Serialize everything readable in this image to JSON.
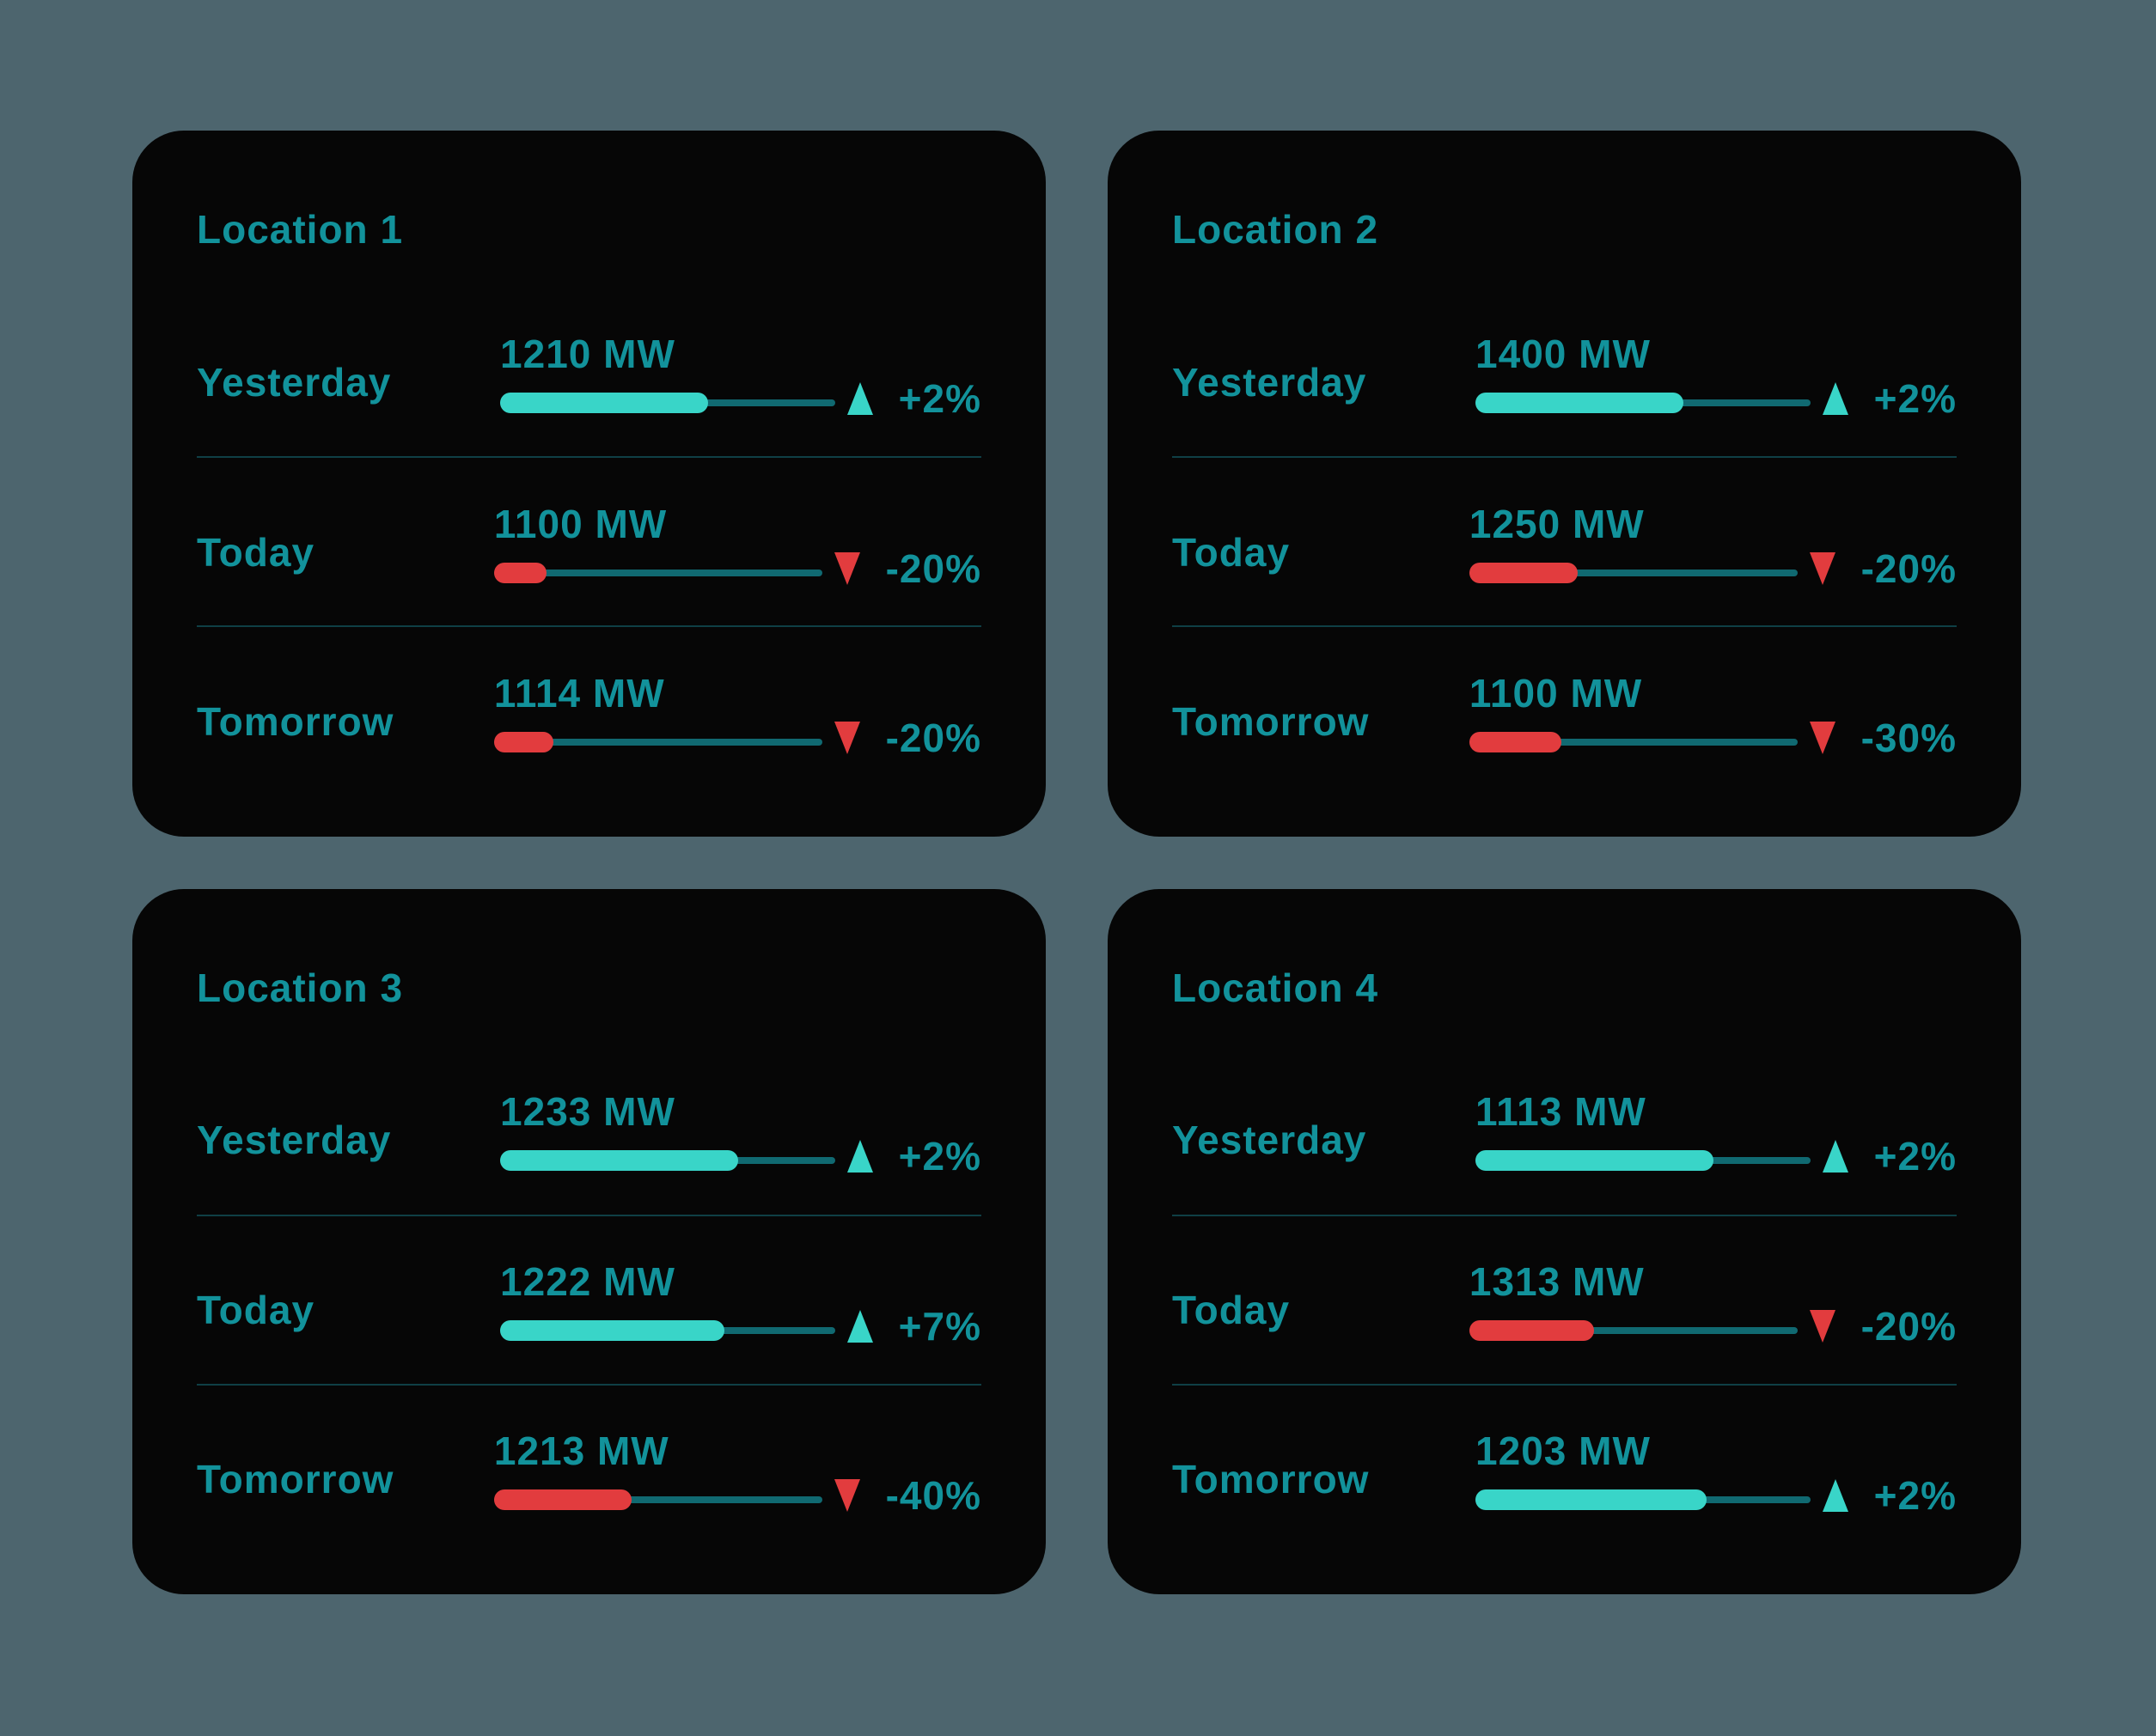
{
  "colors": {
    "bg": "#4D656E",
    "card": "#060606",
    "teal": "#12929B",
    "up": "#39D5C8",
    "down": "#E23C3E",
    "track": "#106971",
    "divider": "#0F3F45"
  },
  "cards": [
    {
      "title": "Location 1",
      "rows": [
        {
          "label": "Yesterday",
          "value": "1210 MW",
          "fill_percent": 62,
          "direction": "up",
          "icon": "triangle-up-icon",
          "change": "+2%"
        },
        {
          "label": "Today",
          "value": "1100 MW",
          "fill_percent": 16,
          "direction": "down",
          "icon": "triangle-down-icon",
          "change": "-20%"
        },
        {
          "label": "Tomorrow",
          "value": "1114 MW",
          "fill_percent": 18,
          "direction": "down",
          "icon": "triangle-down-icon",
          "change": "-20%"
        }
      ]
    },
    {
      "title": "Location 2",
      "rows": [
        {
          "label": "Yesterday",
          "value": "1400 MW",
          "fill_percent": 62,
          "direction": "up",
          "icon": "triangle-up-icon",
          "change": "+2%"
        },
        {
          "label": "Today",
          "value": "1250 MW",
          "fill_percent": 33,
          "direction": "down",
          "icon": "triangle-down-icon",
          "change": "-20%"
        },
        {
          "label": "Tomorrow",
          "value": "1100 MW",
          "fill_percent": 28,
          "direction": "down",
          "icon": "triangle-down-icon",
          "change": "-30%"
        }
      ]
    },
    {
      "title": "Location 3",
      "rows": [
        {
          "label": "Yesterday",
          "value": "1233 MW",
          "fill_percent": 71,
          "direction": "up",
          "icon": "triangle-up-icon",
          "change": "+2%"
        },
        {
          "label": "Today",
          "value": "1222 MW",
          "fill_percent": 67,
          "direction": "up",
          "icon": "triangle-up-icon",
          "change": "+7%"
        },
        {
          "label": "Tomorrow",
          "value": "1213 MW",
          "fill_percent": 42,
          "direction": "down",
          "icon": "triangle-down-icon",
          "change": "-40%"
        }
      ]
    },
    {
      "title": "Location 4",
      "rows": [
        {
          "label": "Yesterday",
          "value": "1113 MW",
          "fill_percent": 71,
          "direction": "up",
          "icon": "triangle-up-icon",
          "change": "+2%"
        },
        {
          "label": "Today",
          "value": "1313 MW",
          "fill_percent": 38,
          "direction": "down",
          "icon": "triangle-down-icon",
          "change": "-20%"
        },
        {
          "label": "Tomorrow",
          "value": "1203 MW",
          "fill_percent": 69,
          "direction": "up",
          "icon": "triangle-up-icon",
          "change": "+2%"
        }
      ]
    }
  ]
}
